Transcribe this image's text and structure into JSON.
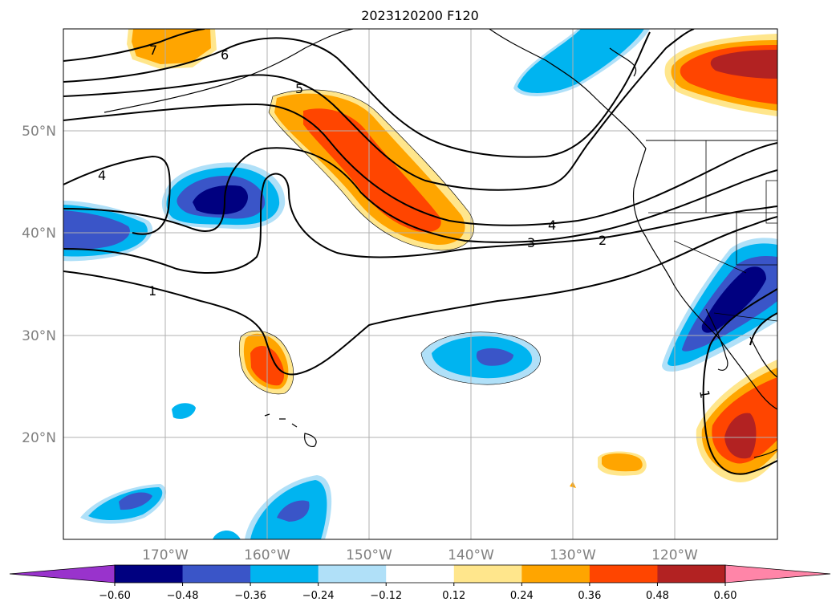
{
  "title": "2023120200 F120",
  "map": {
    "lat_labels": [
      "50°N",
      "40°N",
      "30°N",
      "20°N"
    ],
    "lat_values": [
      50,
      40,
      30,
      20
    ],
    "lon_labels": [
      "170°W",
      "160°W",
      "150°W",
      "140°W",
      "130°W",
      "120°W"
    ],
    "lon_values": [
      -170,
      -160,
      -150,
      -140,
      -130,
      -120
    ],
    "extent": {
      "lon_min": -180,
      "lon_max": -110,
      "lat_min": 10,
      "lat_max": 60
    },
    "grid": true
  },
  "contour_labels": [
    "7",
    "6",
    "5",
    "4",
    "4",
    "3",
    "2",
    "1",
    "1"
  ],
  "colorbar": {
    "tick_labels": [
      "−0.60",
      "−0.48",
      "−0.36",
      "−0.24",
      "−0.12",
      "0.12",
      "0.24",
      "0.36",
      "0.48",
      "0.60"
    ],
    "colors": [
      "#9933cc",
      "#000080",
      "#3a55c8",
      "#00b4f0",
      "#b0e0f8",
      "#ffffff",
      "#ffe68c",
      "#ffa500",
      "#ff4500",
      "#b22222",
      "#ff85a8"
    ]
  }
}
